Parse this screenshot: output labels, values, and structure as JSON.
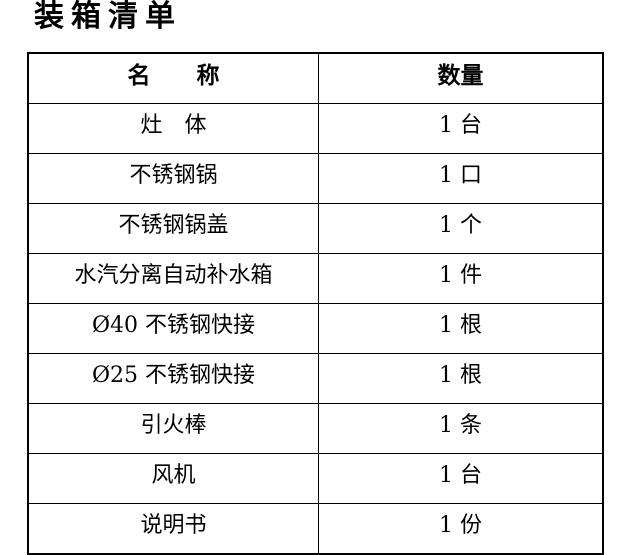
{
  "document": {
    "title": "装箱清单"
  },
  "table": {
    "headers": {
      "name": "名　　称",
      "quantity": "数量"
    },
    "rows": [
      {
        "name": "灶　体",
        "quantity": "1 台"
      },
      {
        "name": "不锈钢锅",
        "quantity": "1 口"
      },
      {
        "name": "不锈钢锅盖",
        "quantity": "1 个"
      },
      {
        "name": "水汽分离自动补水箱",
        "quantity": "1 件"
      },
      {
        "name": "Ø40 不锈钢快接",
        "quantity": "1 根"
      },
      {
        "name": "Ø25 不锈钢快接",
        "quantity": "1 根"
      },
      {
        "name": "引火棒",
        "quantity": "1 条"
      },
      {
        "name": "风机",
        "quantity": "1 台"
      },
      {
        "name": "说明书",
        "quantity": "1 份"
      }
    ]
  }
}
